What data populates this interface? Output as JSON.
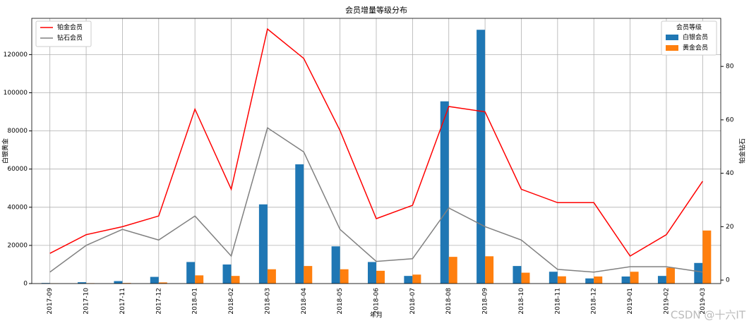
{
  "chart_data": {
    "type": "bar",
    "title": "会员增量等级分布",
    "x_label": "年月",
    "y_label": "白银黄金",
    "y2_label": "铂金钻石",
    "categories": [
      "2017-09",
      "2017-10",
      "2017-11",
      "2017-12",
      "2018-01",
      "2018-02",
      "2018-03",
      "2018-04",
      "2018-05",
      "2018-06",
      "2018-07",
      "2018-08",
      "2018-09",
      "2018-10",
      "2018-11",
      "2018-12",
      "2019-01",
      "2019-02",
      "2019-03"
    ],
    "series": [
      {
        "name": "白银会员",
        "type": "bar",
        "color": "#1f77b4",
        "values": [
          300,
          700,
          1300,
          3500,
          11300,
          10000,
          41500,
          62500,
          19500,
          11300,
          4000,
          95500,
          133000,
          9200,
          6200,
          2700,
          3700,
          4000,
          10800
        ]
      },
      {
        "name": "黄金会员",
        "type": "bar",
        "color": "#ff7f0e",
        "values": [
          100,
          200,
          300,
          600,
          4300,
          4000,
          7500,
          9200,
          7500,
          6700,
          4700,
          14000,
          14300,
          5700,
          3800,
          3700,
          6200,
          8300,
          27800
        ]
      },
      {
        "name": "铂金会员",
        "type": "line",
        "axis": "y2",
        "color": "#ff0000",
        "values": [
          10,
          17,
          20,
          24,
          64,
          34,
          94,
          83,
          56,
          23,
          28,
          65,
          63,
          34,
          29,
          29,
          9,
          17,
          37
        ]
      },
      {
        "name": "钻石会员",
        "type": "line",
        "axis": "y2",
        "color": "#808080",
        "values": [
          3,
          13,
          19,
          15,
          24,
          9,
          57,
          48,
          19,
          7,
          8,
          27,
          20,
          15,
          4,
          3,
          5,
          5,
          3
        ]
      }
    ],
    "bar_legend_title": "会员等级",
    "bar_legend": "upper right",
    "line_legend": "upper left",
    "ylim": [
      0,
      139000
    ],
    "yticks": [
      0,
      20000,
      40000,
      60000,
      80000,
      100000,
      120000
    ],
    "y2lim": [
      -1.3,
      98
    ],
    "y2ticks": [
      0,
      20,
      40,
      60,
      80
    ],
    "grid": true
  },
  "watermark": "CSDN @十六IT"
}
